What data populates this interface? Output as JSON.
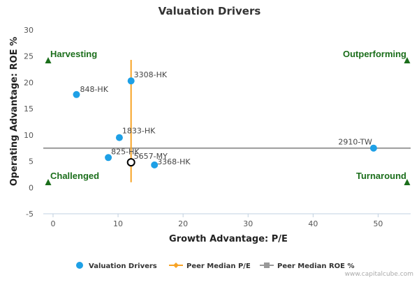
{
  "chart_data": {
    "type": "scatter",
    "title": "Valuation Drivers",
    "xlabel": "Growth Advantage: P/E",
    "ylabel": "Operating Advantage: ROE %",
    "xlim": [
      -1.5,
      55
    ],
    "ylim": [
      -5,
      30
    ],
    "x_ticks": [
      "0",
      "10",
      "20",
      "30",
      "40",
      "50"
    ],
    "y_ticks": [
      "-5",
      "0",
      "5",
      "10",
      "15",
      "20",
      "25",
      "30"
    ],
    "grid": false,
    "legend_position": "bottom",
    "series": [
      {
        "name": "Valuation Drivers",
        "color": "#1ea0e6",
        "points": [
          {
            "label": "848-HK",
            "x": 3.6,
            "y": 17.7
          },
          {
            "label": "3308-HK",
            "x": 12.0,
            "y": 20.3
          },
          {
            "label": "1833-HK",
            "x": 10.2,
            "y": 9.5
          },
          {
            "label": "825-HK",
            "x": 8.5,
            "y": 5.7
          },
          {
            "label": "5657-MY",
            "x": 12.0,
            "y": 4.8,
            "highlight": true
          },
          {
            "label": "3368-HK",
            "x": 15.6,
            "y": 4.3
          },
          {
            "label": "2910-TW",
            "x": 49.3,
            "y": 7.5
          }
        ]
      }
    ],
    "peer_median_pe": {
      "name": "Peer Median P/E",
      "color": "#f7a325",
      "x": 12.0,
      "y_range": [
        1.0,
        24.3
      ]
    },
    "peer_median_roe": {
      "name": "Peer Median ROE %",
      "color": "#999999",
      "y": 7.5,
      "x_range": [
        -1.5,
        55
      ]
    },
    "quadrants": [
      "Harvesting",
      "Outperforming",
      "Challenged",
      "Turnaround"
    ],
    "quadrant_color": "#1b6e1b",
    "credit": "www.capitalcube.com"
  }
}
